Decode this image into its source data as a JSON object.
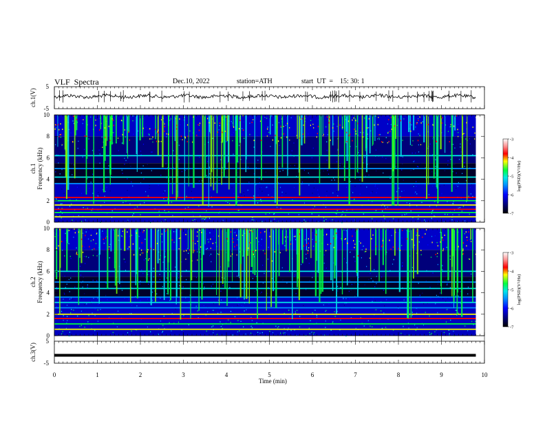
{
  "header": {
    "title": "VLF  Spectra",
    "date": "Dec.10, 2022",
    "station": "station=ATH",
    "start": "start  UT  =    15: 30: 1"
  },
  "colors": {
    "bg": "#ffffff",
    "axis": "#000000",
    "waveform": "#000000",
    "colormap": [
      "#000000",
      "#00007a",
      "#0000ff",
      "#0090ff",
      "#00e8e8",
      "#00ff40",
      "#ffff00",
      "#ff0000",
      "#ff9090",
      "#ffffff"
    ]
  },
  "chart_data": [
    {
      "type": "line",
      "name": "ch1-waveform",
      "ylabel": "ch.1(V)",
      "ylim": [
        -5,
        5
      ],
      "yticks": [
        "5",
        "-5"
      ],
      "xlim": [
        0,
        10
      ],
      "level_volts": 0.6,
      "grid": false
    },
    {
      "type": "heatmap",
      "name": "ch1-spectrogram",
      "ylabel": "ch.1\nFrequency (kHz)",
      "ylim": [
        0,
        10
      ],
      "yticks": [
        0,
        2,
        4,
        6,
        8,
        10
      ],
      "xlim": [
        0,
        10
      ],
      "data_end_min": 9.8,
      "colorbar": {
        "label": "log(PSD)(V²/Hz)",
        "range": [
          -7,
          -3
        ],
        "ticks": [
          "-3",
          "-4",
          "-5",
          "-6",
          "-7"
        ]
      },
      "bands_khz": [
        0.5,
        0.9,
        1.2,
        1.6,
        2.0,
        2.3,
        3.6,
        4.2,
        5.0,
        6.2
      ]
    },
    {
      "type": "heatmap",
      "name": "ch2-spectrogram",
      "ylabel": "ch.2\nFrequency (kHz)",
      "ylim": [
        0,
        10
      ],
      "yticks": [
        0,
        2,
        4,
        6,
        8,
        10
      ],
      "xlim": [
        0,
        10
      ],
      "data_end_min": 9.8,
      "colorbar": {
        "label": "log(PSD)(V²/Hz)",
        "range": [
          -7,
          -3
        ],
        "ticks": [
          "-3",
          "-4",
          "-5",
          "-6",
          "-7"
        ]
      },
      "bands_khz": [
        0.6,
        1.1,
        1.6,
        2.0,
        2.6,
        3.1,
        3.6,
        4.4,
        5.0,
        6.0
      ]
    },
    {
      "type": "line",
      "name": "ch3-waveform",
      "ylabel": "ch.3(V)",
      "ylim": [
        -5,
        5
      ],
      "yticks": [
        "5",
        "-5"
      ],
      "xlim": [
        0,
        10
      ],
      "level_volts": -1.4,
      "grid": false
    }
  ],
  "xaxis": {
    "label": "Time  (min)",
    "range": [
      0,
      10
    ],
    "ticks": [
      "0",
      "1",
      "2",
      "3",
      "4",
      "5",
      "6",
      "7",
      "8",
      "9",
      "10"
    ]
  }
}
